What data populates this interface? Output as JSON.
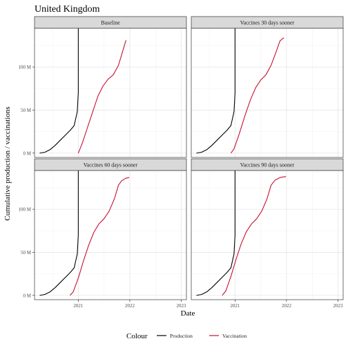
{
  "chart_data": {
    "type": "line",
    "title": "United Kingdom",
    "xlabel": "Date",
    "ylabel": "Cumulative production / vaccinations",
    "x_ticks": [
      "2021",
      "2022",
      "2023"
    ],
    "y_ticks": [
      "0 M",
      "50 M",
      "100 M"
    ],
    "ylim_millions": [
      -5,
      145
    ],
    "xlim_years": [
      2020.15,
      2023.1
    ],
    "grid": true,
    "legend": {
      "title": "Colour",
      "position": "bottom",
      "entries": [
        {
          "label": "Production",
          "color": "#000000"
        },
        {
          "label": "Vaccination",
          "color": "#c8102e"
        }
      ]
    },
    "panels": [
      {
        "title": "Baseline",
        "series": [
          {
            "name": "Production",
            "color": "#000000",
            "points": [
              [
                2020.25,
                0
              ],
              [
                2020.35,
                1
              ],
              [
                2020.45,
                4
              ],
              [
                2020.55,
                9
              ],
              [
                2020.65,
                15
              ],
              [
                2020.75,
                21
              ],
              [
                2020.85,
                27
              ],
              [
                2020.92,
                32
              ],
              [
                2020.98,
                48
              ],
              [
                2021.0,
                70
              ],
              [
                2021.0,
                200
              ]
            ]
          },
          {
            "name": "Vaccination",
            "color": "#c8102e",
            "points": [
              [
                2021.0,
                0
              ],
              [
                2021.08,
                12
              ],
              [
                2021.18,
                30
              ],
              [
                2021.28,
                48
              ],
              [
                2021.38,
                66
              ],
              [
                2021.48,
                78
              ],
              [
                2021.58,
                86
              ],
              [
                2021.68,
                91
              ],
              [
                2021.78,
                102
              ],
              [
                2021.86,
                118
              ],
              [
                2021.92,
                130
              ],
              [
                2021.93,
                131
              ]
            ]
          }
        ]
      },
      {
        "title": "Vaccines 30 days sooner",
        "series": [
          {
            "name": "Production",
            "color": "#000000",
            "points": [
              [
                2020.25,
                0
              ],
              [
                2020.35,
                1
              ],
              [
                2020.45,
                4
              ],
              [
                2020.55,
                9
              ],
              [
                2020.65,
                15
              ],
              [
                2020.75,
                21
              ],
              [
                2020.85,
                27
              ],
              [
                2020.92,
                32
              ],
              [
                2020.98,
                48
              ],
              [
                2021.0,
                70
              ],
              [
                2021.0,
                200
              ]
            ]
          },
          {
            "name": "Vaccination",
            "color": "#c8102e",
            "points": [
              [
                2020.92,
                0
              ],
              [
                2020.98,
                5
              ],
              [
                2021.08,
                22
              ],
              [
                2021.2,
                45
              ],
              [
                2021.3,
                62
              ],
              [
                2021.4,
                76
              ],
              [
                2021.5,
                85
              ],
              [
                2021.6,
                91
              ],
              [
                2021.7,
                102
              ],
              [
                2021.8,
                118
              ],
              [
                2021.87,
                130
              ],
              [
                2021.92,
                133
              ],
              [
                2021.95,
                134
              ]
            ]
          }
        ]
      },
      {
        "title": "Vaccines 60 days sooner",
        "series": [
          {
            "name": "Production",
            "color": "#000000",
            "points": [
              [
                2020.25,
                0
              ],
              [
                2020.35,
                1
              ],
              [
                2020.45,
                4
              ],
              [
                2020.55,
                9
              ],
              [
                2020.65,
                15
              ],
              [
                2020.75,
                21
              ],
              [
                2020.85,
                27
              ],
              [
                2020.92,
                32
              ],
              [
                2020.98,
                48
              ],
              [
                2021.0,
                70
              ],
              [
                2021.0,
                200
              ]
            ]
          },
          {
            "name": "Vaccination",
            "color": "#c8102e",
            "points": [
              [
                2020.84,
                0
              ],
              [
                2020.9,
                4
              ],
              [
                2021.0,
                20
              ],
              [
                2021.1,
                40
              ],
              [
                2021.2,
                58
              ],
              [
                2021.3,
                73
              ],
              [
                2021.4,
                83
              ],
              [
                2021.5,
                89
              ],
              [
                2021.6,
                98
              ],
              [
                2021.7,
                112
              ],
              [
                2021.78,
                128
              ],
              [
                2021.84,
                133
              ],
              [
                2021.92,
                136
              ],
              [
                2021.99,
                137
              ]
            ]
          }
        ]
      },
      {
        "title": "Vaccines 90 days sooner",
        "series": [
          {
            "name": "Production",
            "color": "#000000",
            "points": [
              [
                2020.25,
                0
              ],
              [
                2020.35,
                1
              ],
              [
                2020.45,
                4
              ],
              [
                2020.55,
                9
              ],
              [
                2020.65,
                15
              ],
              [
                2020.75,
                21
              ],
              [
                2020.85,
                27
              ],
              [
                2020.92,
                32
              ],
              [
                2020.98,
                48
              ],
              [
                2021.0,
                70
              ],
              [
                2021.0,
                200
              ]
            ]
          },
          {
            "name": "Vaccination",
            "color": "#c8102e",
            "points": [
              [
                2020.75,
                0
              ],
              [
                2020.82,
                5
              ],
              [
                2020.92,
                22
              ],
              [
                2021.02,
                42
              ],
              [
                2021.12,
                60
              ],
              [
                2021.22,
                74
              ],
              [
                2021.32,
                83
              ],
              [
                2021.42,
                89
              ],
              [
                2021.52,
                98
              ],
              [
                2021.62,
                112
              ],
              [
                2021.7,
                128
              ],
              [
                2021.78,
                134
              ],
              [
                2021.88,
                137
              ],
              [
                2021.99,
                138
              ]
            ]
          }
        ]
      }
    ]
  }
}
